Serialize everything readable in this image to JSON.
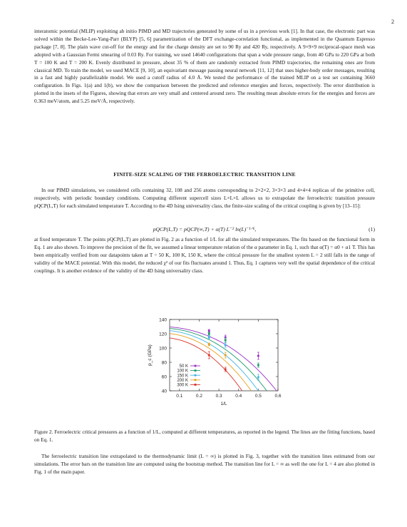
{
  "page_number": "2",
  "para1": "interatomic potential (MLIP) exploiting ab initio PIMD and MD trajectories generated by some of us in a previous work [1]. In that case, the electronic part was solved within the Becke-Lee-Yang-Parr (BLYP) [5, 6] parametrization of the DFT exchange-correlation functional, as implemented in the Quantum Espresso package [7, 8]. The plain wave cut-off for the energy and for the charge density are set to 90 Ry and 420 Ry, respectively. A 9×9×9 reciprocal-space mesh was adopted with a Gaussian Fermi smearing of 0.03 Ry. For training, we used 14640 configurations that span a wide pressure range, from 40 GPa to 220 GPa at both T = 100 K and T = 200 K. Evenly distributed in pressure, about 35 % of them are randomly extracted from PIMD trajectories, the remaining ones are from classical MD. To train the model, we used MACE [9, 10], an equivariant message passing neural network [11, 12] that uses higher-body order messages, resulting in a fast and highly parallelizable model. We used a cutoff radius of 4.0 Å. We tested the performance of the trained MLIP on a test set containing 3660 configuration. In Figs. 1(a) and 1(b), we show the comparison between the predicted and reference energies and forces, respectively. The error distribution is plotted in the insets of the Figures, showing that errors are very small and centered around zero. The resulting mean absolute errors for the energies and forces are 0.363 meV/atom, and 5.25 meV/Å, respectively.",
  "section_title": "FINITE-SIZE SCALING OF THE FERROELECTRIC TRANSITION LINE",
  "para2": "In our PIMD simulations, we considered cells containing 32, 108 and 256 atoms corresponding to 2×2×2, 3×3×3 and 4×4×4 replicas of the primitive cell, respectively, with periodic boundary conditions. Computing different supercell sizes L×L×L allows us to extrapolate the ferroelectric transition pressure pQCP(L,T) for each simulated temperature T. According to the 4D Ising universality class, the finite-size scaling of the critical coupling is given by [13–15]:",
  "equation": "pQCP(L,T) = pQCP(∞,T) + α(T) L⁻² ln(L)⁻¹ᐟ⁶,",
  "equation_number": "(1)",
  "para3": "at fixed temperature T. The points pQCP(L,T) are plotted in Fig. 2 as a function of 1/L for all the simulated temperatures. The fits based on the functional form in Eq. 1 are also shown. To improve the precision of the fit, we assumed a linear temperature relation of the α parameter in Eq. 1, such that α(T) = α0 + α1 T. This has been empirically verified from our datapoints taken at T = 50 K, 100 K, 150 K, where the critical pressure for the smallest system L = 2 still falls in the range of validity of the MACE potential. With this model, the reduced χ² of our fits fluctuates around 1. Thus, Eq. 1 captures very well the spatial dependence of the critical couplings. It is another evidence of the validity of the 4D Ising universality class.",
  "caption": "Figure 2. Ferroelectric critical pressures as a function of 1/L, computed at different temperatures, as reported in the legend. The lines are the fitting functions, based on Eq. 1.",
  "para4": "The ferroelectric transition line extrapolated to the thermodynamic limit (L = ∞) is plotted in Fig. 3, together with the transition lines estimated from our simulations. The error bars on the transition line are computed using the bootstrap method. The transition line for L = ∞ as well the one for L = 4 are also plotted in Fig. 1 of the main paper.",
  "chart_data": {
    "type": "scatter",
    "xlabel": "1/L",
    "ylabel": "p_c (GPa)",
    "xlim": [
      0.05,
      0.6
    ],
    "ylim": [
      40,
      140
    ],
    "xticks": [
      "0.1",
      "0.2",
      "0.3",
      "0.4",
      "0.5",
      "0.6"
    ],
    "yticks": [
      "40",
      "60",
      "80",
      "100",
      "120",
      "140"
    ],
    "legend_position": "bottom-left",
    "x": [
      0.25,
      0.333,
      0.5
    ],
    "series": [
      {
        "name": "50 K",
        "color": "#9b30c8",
        "y": [
          124,
          115,
          89
        ],
        "err": [
          2,
          3,
          5
        ],
        "fit_pinf": 130,
        "fit_alpha": -230
      },
      {
        "name": "100 K",
        "color": "#1e9a6a",
        "y": [
          120,
          111,
          76
        ],
        "err": [
          2,
          3,
          3
        ],
        "fit_pinf": 128,
        "fit_alpha": -275
      },
      {
        "name": "150 K",
        "color": "#3fb5e8",
        "y": [
          115,
          104,
          59
        ],
        "err": [
          2,
          3,
          4
        ],
        "fit_pinf": 125,
        "fit_alpha": -320
      },
      {
        "name": "200 K",
        "color": "#e6a11e",
        "y": [
          105,
          90,
          null
        ],
        "err": [
          2,
          4,
          0
        ],
        "fit_pinf": 121,
        "fit_alpha": -360
      },
      {
        "name": "300 K",
        "color": "#d9322a",
        "y": [
          90,
          70,
          null
        ],
        "err": [
          5,
          3,
          0
        ],
        "fit_pinf": 115,
        "fit_alpha": -420
      }
    ]
  }
}
